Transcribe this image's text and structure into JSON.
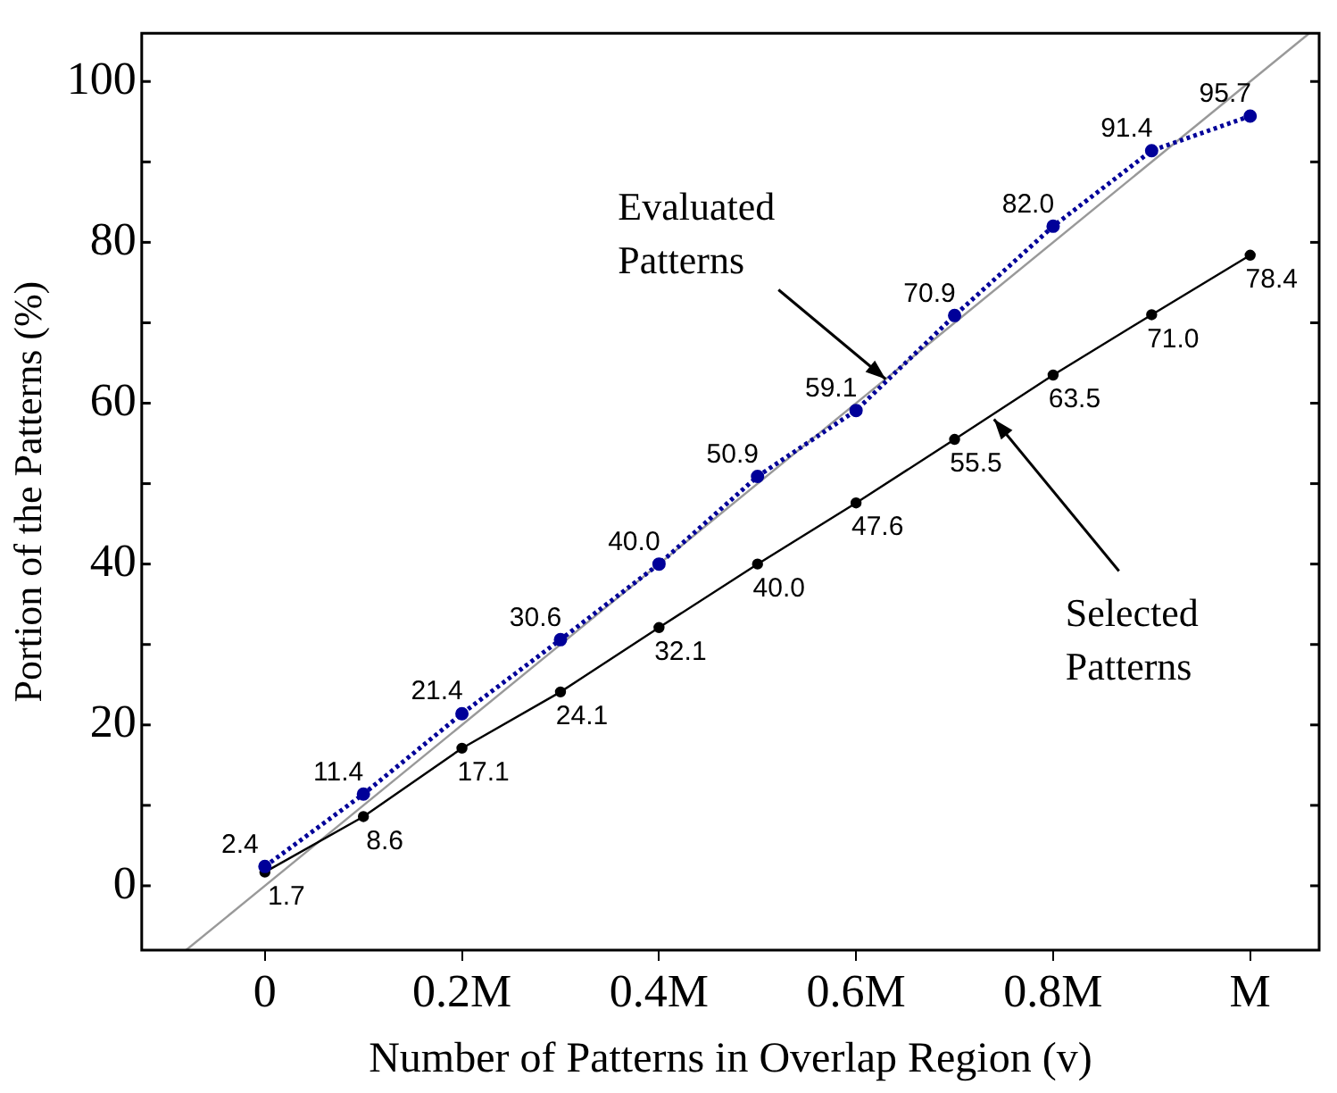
{
  "chart_data": {
    "type": "line",
    "xlabel": "Number of Patterns in Overlap Region (v)",
    "ylabel": "Portion of the Patterns (%)",
    "x": [
      0,
      0.1,
      0.2,
      0.3,
      0.4,
      0.5,
      0.6,
      0.7,
      0.8,
      0.9,
      1
    ],
    "series": [
      {
        "color": "#000099",
        "line_style": "dotted",
        "marker": "circle",
        "values": [
          2.4,
          11.4,
          21.4,
          30.6,
          40.0,
          50.9,
          59.1,
          70.9,
          82.0,
          91.4,
          95.7
        ],
        "value_labels": [
          "2.4",
          "11.4",
          "21.4",
          "30.6",
          "40.0",
          "50.9",
          "59.1",
          "70.9",
          "82.0",
          "91.4",
          "95.7"
        ]
      },
      {
        "color": "#000000",
        "line_style": "solid",
        "marker": "circle",
        "values": [
          1.7,
          8.6,
          17.1,
          24.1,
          32.1,
          40.0,
          47.6,
          55.5,
          63.5,
          71.0,
          78.4
        ],
        "value_labels": [
          "1.7",
          "8.6",
          "17.1",
          "24.1",
          "32.1",
          "40.0",
          "47.6",
          "55.5",
          "63.5",
          "71.0",
          "78.4"
        ]
      },
      {
        "type": "line",
        "color": "#999999",
        "line_style": "solid",
        "marker": "none",
        "x": [
          -0.08,
          1.06
        ],
        "values": [
          -8,
          106
        ]
      }
    ],
    "annotations": [
      {
        "text": "Evaluated Patterns",
        "x": 0.63,
        "y": 63
      },
      {
        "text": "Selected Patterns",
        "x": 0.74,
        "y": 58
      }
    ],
    "xlim": [
      -0.125,
      1.07
    ],
    "ylim": [
      -8,
      106
    ],
    "xticks": [
      0,
      {
        "value": 0.2,
        "label": "0.2M"
      },
      {
        "value": 0.4,
        "label": "0.4M"
      },
      {
        "value": 0.6,
        "label": "0.6M"
      },
      {
        "value": 0.8,
        "label": "0.8M"
      },
      {
        "value": 1,
        "label": "M"
      }
    ],
    "yticks": [
      0,
      {
        "value": 10,
        "label": null
      },
      20,
      {
        "value": 30,
        "label": null
      },
      40,
      {
        "value": 50,
        "label": null
      },
      60,
      {
        "value": 70,
        "label": null
      },
      80,
      {
        "value": 90,
        "label": null
      },
      100
    ],
    "grid": false,
    "legend": false
  }
}
